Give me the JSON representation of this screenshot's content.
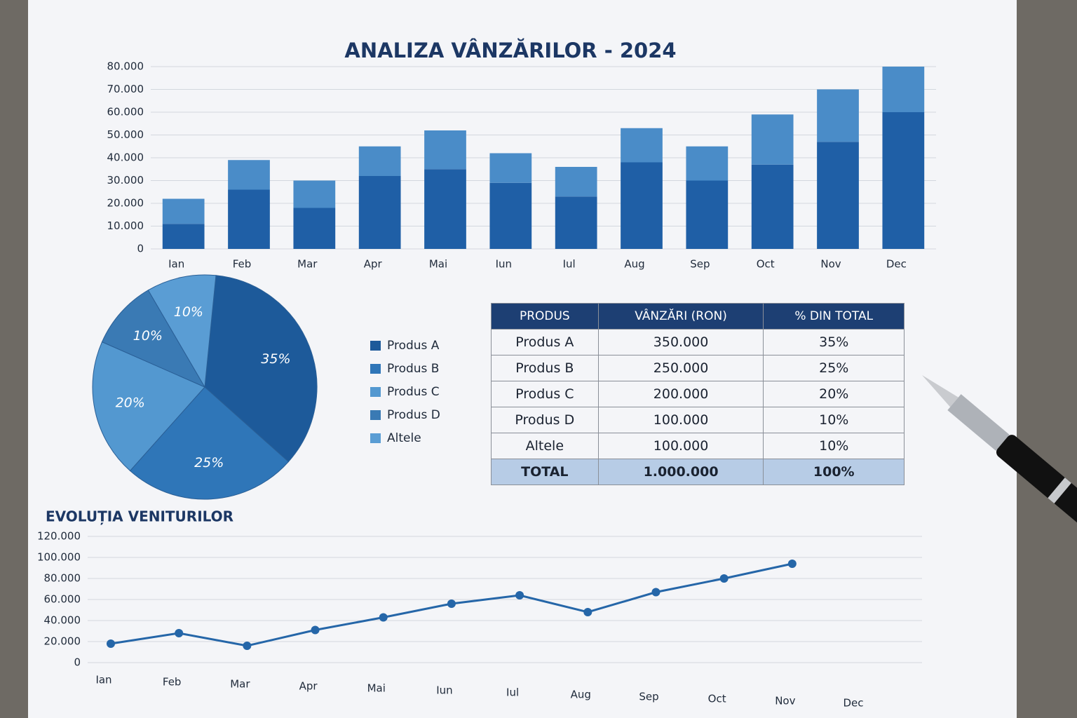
{
  "title": "ANALIZA VÂNZĂRILOR - 2024",
  "chart_data": [
    {
      "type": "bar",
      "stacked": true,
      "categories": [
        "Ian",
        "Feb",
        "Mar",
        "Apr",
        "Mai",
        "Iun",
        "Iul",
        "Aug",
        "Sep",
        "Oct",
        "Nov",
        "Dec"
      ],
      "series": [
        {
          "color": "#1f5fa6",
          "values": [
            11000,
            26000,
            18000,
            32000,
            35000,
            29000,
            23000,
            38000,
            30000,
            37000,
            47000,
            60000
          ]
        },
        {
          "color": "#4a8cc8",
          "values": [
            11000,
            13000,
            12000,
            13000,
            17000,
            13000,
            13000,
            15000,
            15000,
            22000,
            23000,
            20000
          ]
        }
      ],
      "ylim": [
        0,
        80000
      ],
      "yticks": [
        0,
        {
          "value": 10000,
          "label": "10.000"
        },
        {
          "value": 20000,
          "label": "20.000"
        },
        {
          "value": 30000,
          "label": "30.000"
        },
        {
          "value": 40000,
          "label": "40.000"
        },
        {
          "value": 50000,
          "label": "50.000"
        },
        {
          "value": 60000,
          "label": "60.000"
        },
        {
          "value": 70000,
          "label": "70.000"
        },
        {
          "value": 80000,
          "label": "80.000"
        }
      ],
      "grid": true
    },
    {
      "type": "pie",
      "categories": [
        "Produs A",
        "Produs B",
        "Produs C",
        "Produs D",
        "Altele"
      ],
      "values": [
        35,
        25,
        20,
        10,
        10
      ],
      "value_labels": [
        "35%",
        "25%",
        "20%",
        "10%",
        "10%"
      ],
      "colors": [
        "#1d5a9a",
        "#2f76b8",
        "#5398d0",
        "#3a7ab4",
        "#5a9dd4"
      ],
      "legend": "right"
    },
    {
      "type": "line",
      "title": "EVOLUȚIA VENITURILOR",
      "categories": [
        "Ian",
        "Feb",
        "Mar",
        "Apr",
        "Mai",
        "Iun",
        "Iul",
        "Aug",
        "Sep",
        "Oct",
        "Nov",
        "Dec"
      ],
      "series": [
        {
          "color": "#2566a8",
          "values": [
            18000,
            28000,
            16000,
            31000,
            43000,
            56000,
            64000,
            48000,
            67000,
            80000,
            94000,
            null
          ]
        }
      ],
      "ylim": [
        0,
        120000
      ],
      "yticks": [
        0,
        {
          "value": 20000,
          "label": "20.000"
        },
        {
          "value": 40000,
          "label": "40.000"
        },
        {
          "value": 60000,
          "label": "60.000"
        },
        {
          "value": 80000,
          "label": "80.000"
        },
        {
          "value": 100000,
          "label": "100.000"
        },
        {
          "value": 120000,
          "label": "120.000"
        }
      ],
      "grid": true
    }
  ],
  "table": {
    "header": [
      "PRODUS",
      "VÂNZĂRI (RON)",
      "% DIN TOTAL"
    ],
    "rows": [
      [
        "Produs A",
        "350.000",
        "35%"
      ],
      [
        "Produs B",
        "250.000",
        "25%"
      ],
      [
        "Produs C",
        "200.000",
        "20%"
      ],
      [
        "Produs D",
        "100.000",
        "10%"
      ],
      [
        "Altele",
        "100.000",
        "10%"
      ]
    ],
    "total": [
      "TOTAL",
      "1.000.000",
      "100%"
    ]
  }
}
